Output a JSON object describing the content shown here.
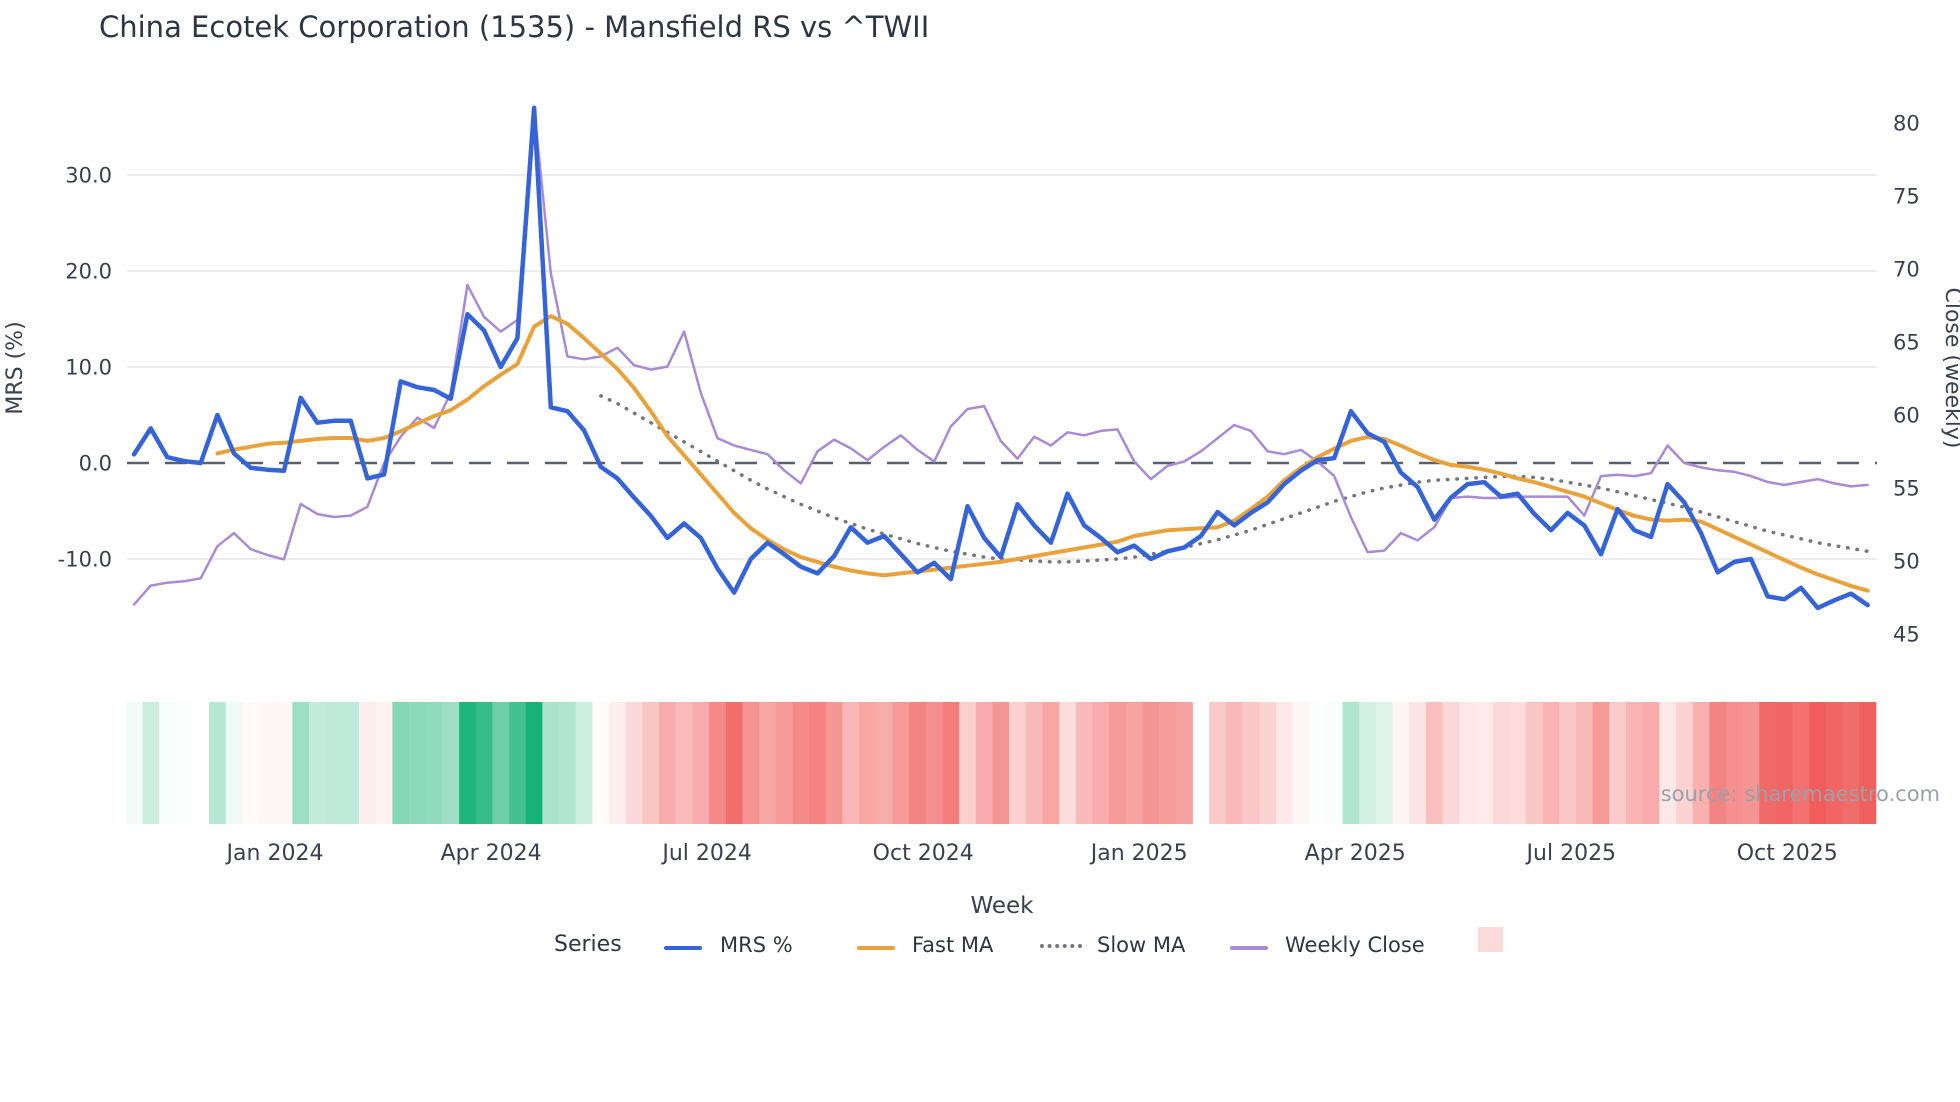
{
  "title": "China Ecotek Corporation (1535) - Mansfield RS vs ^TWII",
  "source_note": "source: sharemaestro.com",
  "axes": {
    "left": {
      "title": "MRS (%)",
      "ticks": [
        {
          "label": "30.0",
          "v": 30
        },
        {
          "label": "20.0",
          "v": 20
        },
        {
          "label": "10.0",
          "v": 10
        },
        {
          "label": "0.0",
          "v": 0
        },
        {
          "label": "-10.0",
          "v": -10
        }
      ]
    },
    "right": {
      "title": "Close (weekly)",
      "ticks": [
        {
          "label": "80",
          "v": 80
        },
        {
          "label": "75",
          "v": 75
        },
        {
          "label": "70",
          "v": 70
        },
        {
          "label": "65",
          "v": 65
        },
        {
          "label": "60",
          "v": 60
        },
        {
          "label": "55",
          "v": 55
        },
        {
          "label": "50",
          "v": 50
        },
        {
          "label": "45",
          "v": 45
        }
      ]
    },
    "x": {
      "title": "Week",
      "ticks": [
        {
          "label": "Jan 2024",
          "i": 8.46
        },
        {
          "label": "Apr 2024",
          "i": 21.42
        },
        {
          "label": "Jul 2024",
          "i": 34.38
        },
        {
          "label": "Oct 2024",
          "i": 47.34
        },
        {
          "label": "Jan 2025",
          "i": 60.3
        },
        {
          "label": "Apr 2025",
          "i": 73.26
        },
        {
          "label": "Jul 2025",
          "i": 86.22
        },
        {
          "label": "Oct 2025",
          "i": 99.18
        }
      ]
    }
  },
  "legend": {
    "title": "Series",
    "items": [
      {
        "label": "MRS %",
        "color": "#3563d8",
        "swatch": "line"
      },
      {
        "label": "Fast MA",
        "color": "#e9a23b",
        "swatch": "line"
      },
      {
        "label": "Slow MA",
        "color": "#75757d",
        "swatch": "dotted"
      },
      {
        "label": "Weekly Close",
        "color": "#a78bd4",
        "swatch": "line"
      },
      {
        "label": "",
        "color": "#fbdada",
        "swatch": "square"
      }
    ]
  },
  "chart_data": {
    "type": "line",
    "x_unit": "week index (105 weekly points, Nov 2023 - Nov 2025)",
    "n_points": 105,
    "grid": true,
    "baseline": {
      "axis": "left",
      "value": 0,
      "style": "dashed"
    },
    "left_axis_range": [
      -20.5,
      39.5
    ],
    "right_axis_range": [
      43,
      82.5
    ],
    "heatmap": {
      "basis_series": "MRS %",
      "gap_index": 64,
      "positive_color": "#16b374",
      "negative_color": "#ef5350",
      "saturate_at_abs": 16,
      "legend_swatch_color": "#fbdada"
    },
    "series": [
      {
        "name": "MRS %",
        "axis": "left",
        "color": "#3563d8",
        "width": 4.5,
        "style": "solid",
        "values": [
          0.9,
          3.6,
          0.6,
          0.2,
          0.0,
          5.0,
          1.0,
          -0.5,
          -0.7,
          -0.8,
          6.8,
          4.2,
          4.4,
          4.4,
          -1.6,
          -1.2,
          8.5,
          7.9,
          7.6,
          6.7,
          15.5,
          13.8,
          10.0,
          13.0,
          37.0,
          5.8,
          5.4,
          3.4,
          -0.4,
          -1.6,
          -3.6,
          -5.5,
          -7.8,
          -6.3,
          -7.8,
          -11.0,
          -13.5,
          -10.0,
          -8.3,
          -9.5,
          -10.8,
          -11.5,
          -9.7,
          -6.7,
          -8.3,
          -7.6,
          -9.5,
          -11.4,
          -10.4,
          -12.1,
          -4.5,
          -7.8,
          -9.8,
          -4.3,
          -6.5,
          -8.3,
          -3.2,
          -6.5,
          -7.8,
          -9.3,
          -8.6,
          -10.0,
          -9.2,
          -8.8,
          -7.6,
          -5.1,
          -6.5,
          -5.2,
          -4.1,
          -2.2,
          -0.8,
          0.3,
          0.5,
          5.4,
          3.1,
          2.2,
          -1.0,
          -2.5,
          -5.9,
          -3.6,
          -2.2,
          -2.0,
          -3.5,
          -3.2,
          -5.3,
          -7.0,
          -5.2,
          -6.5,
          -9.5,
          -4.8,
          -7.0,
          -7.7,
          -2.2,
          -4.1,
          -7.3,
          -11.4,
          -10.3,
          -10.0,
          -13.9,
          -14.2,
          -13.0,
          -15.1,
          -14.3,
          -13.6,
          -14.8
        ]
      },
      {
        "name": "Fast MA",
        "axis": "left",
        "color": "#e9a23b",
        "width": 4,
        "style": "solid",
        "values": [
          null,
          null,
          null,
          null,
          null,
          1.0,
          1.4,
          1.7,
          2.0,
          2.1,
          2.3,
          2.5,
          2.6,
          2.6,
          2.3,
          2.6,
          3.3,
          4.1,
          4.9,
          5.5,
          6.6,
          8.0,
          9.2,
          10.3,
          14.2,
          15.3,
          14.5,
          13.0,
          11.4,
          9.8,
          7.8,
          5.4,
          2.8,
          0.8,
          -1.2,
          -3.2,
          -5.2,
          -6.8,
          -8.0,
          -9.0,
          -9.8,
          -10.3,
          -10.8,
          -11.2,
          -11.5,
          -11.7,
          -11.5,
          -11.3,
          -11.1,
          -10.9,
          -10.7,
          -10.5,
          -10.3,
          -10.0,
          -9.7,
          -9.4,
          -9.1,
          -8.8,
          -8.5,
          -8.2,
          -7.6,
          -7.3,
          -7.0,
          -6.9,
          -6.8,
          -6.7,
          -6.0,
          -4.8,
          -3.5,
          -1.8,
          -0.5,
          0.6,
          1.5,
          2.3,
          2.7,
          2.5,
          1.8,
          1.0,
          0.3,
          -0.2,
          -0.4,
          -0.7,
          -1.1,
          -1.6,
          -2.0,
          -2.5,
          -3.0,
          -3.5,
          -4.2,
          -4.9,
          -5.5,
          -5.9,
          -6.0,
          -5.9,
          -6.1,
          -6.9,
          -7.7,
          -8.5,
          -9.3,
          -10.1,
          -10.9,
          -11.6,
          -12.2,
          -12.8,
          -13.3
        ]
      },
      {
        "name": "Slow MA",
        "axis": "left",
        "color": "#75757d",
        "width": 3.5,
        "style": "dotted",
        "values": [
          null,
          null,
          null,
          null,
          null,
          null,
          null,
          null,
          null,
          null,
          null,
          null,
          null,
          null,
          null,
          null,
          null,
          null,
          null,
          null,
          null,
          null,
          null,
          null,
          null,
          null,
          null,
          null,
          7.0,
          6.2,
          5.2,
          4.2,
          3.2,
          2.2,
          1.2,
          0.2,
          -0.8,
          -1.8,
          -2.7,
          -3.5,
          -4.3,
          -5.0,
          -5.7,
          -6.3,
          -6.9,
          -7.4,
          -7.9,
          -8.4,
          -8.8,
          -9.2,
          -9.5,
          -9.8,
          -10.0,
          -10.1,
          -10.2,
          -10.3,
          -10.3,
          -10.2,
          -10.1,
          -10.0,
          -9.8,
          -9.5,
          -9.2,
          -8.8,
          -8.4,
          -8.0,
          -7.5,
          -7.0,
          -6.4,
          -5.8,
          -5.2,
          -4.6,
          -4.0,
          -3.5,
          -3.0,
          -2.6,
          -2.3,
          -2.0,
          -1.8,
          -1.7,
          -1.6,
          -1.5,
          -1.4,
          -1.4,
          -1.5,
          -1.7,
          -2.0,
          -2.3,
          -2.6,
          -3.0,
          -3.4,
          -3.8,
          -4.2,
          -4.6,
          -5.1,
          -5.6,
          -6.1,
          -6.6,
          -7.1,
          -7.5,
          -7.9,
          -8.3,
          -8.6,
          -8.9,
          -9.2
        ]
      },
      {
        "name": "Weekly Close",
        "axis": "right",
        "color": "#a78bd4",
        "width": 2.5,
        "style": "solid",
        "values": [
          47.0,
          48.3,
          48.5,
          48.6,
          48.8,
          51.0,
          51.9,
          50.8,
          50.4,
          50.1,
          53.9,
          53.2,
          53.0,
          53.1,
          53.7,
          56.7,
          58.5,
          59.8,
          59.1,
          61.5,
          68.9,
          66.7,
          65.7,
          66.5,
          81.0,
          69.7,
          64.0,
          63.8,
          64.0,
          64.6,
          63.4,
          63.1,
          63.3,
          65.7,
          61.5,
          58.4,
          57.9,
          57.6,
          57.3,
          56.2,
          55.3,
          57.5,
          58.3,
          57.7,
          56.9,
          57.8,
          58.6,
          57.6,
          56.8,
          59.2,
          60.4,
          60.6,
          58.2,
          57.0,
          58.5,
          57.9,
          58.8,
          58.6,
          58.9,
          59.0,
          56.8,
          55.6,
          56.5,
          56.8,
          57.5,
          58.4,
          59.3,
          58.9,
          57.5,
          57.3,
          57.6,
          56.8,
          55.8,
          53.0,
          50.6,
          50.7,
          51.9,
          51.4,
          52.3,
          54.3,
          54.4,
          54.3,
          54.3,
          54.4,
          54.4,
          54.4,
          54.4,
          53.1,
          55.8,
          55.9,
          55.8,
          56.0,
          57.9,
          56.7,
          56.4,
          56.2,
          56.1,
          55.8,
          55.4,
          55.2,
          55.4,
          55.6,
          55.3,
          55.1,
          55.2
        ]
      }
    ]
  }
}
